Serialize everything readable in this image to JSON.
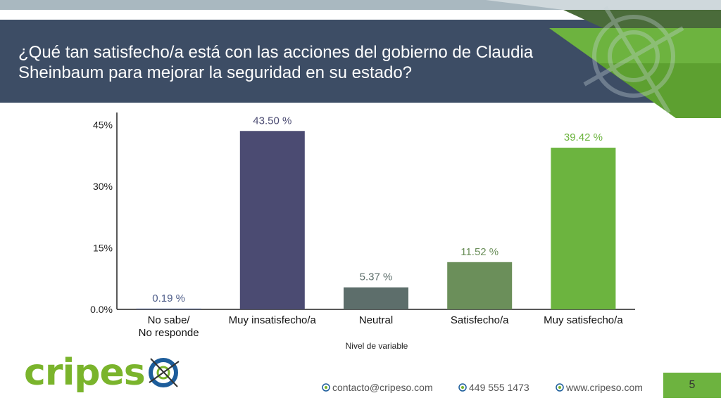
{
  "slide": {
    "title": "¿Qué tan satisfecho/a está con las acciones del gobierno de Claudia Sheinbaum para mejorar la seguridad en su estado?",
    "page_number": "5"
  },
  "chart_data": {
    "type": "bar",
    "categories": [
      "No sabe/\nNo responde",
      "Muy insatisfecho/a",
      "Neutral",
      "Satisfecho/a",
      "Muy satisfecho/a"
    ],
    "values": [
      0.19,
      43.5,
      5.37,
      11.52,
      39.42
    ],
    "value_labels": [
      "0.19 %",
      "43.50 %",
      "5.37 %",
      "11.52 %",
      "39.42 %"
    ],
    "bar_colors": [
      "#4f5e8a",
      "#4b4b72",
      "#5d6e6b",
      "#6b8f5a",
      "#6cb43f"
    ],
    "label_colors": [
      "#4f5e8a",
      "#4b4b72",
      "#5d6e6b",
      "#6b8f5a",
      "#6cb43f"
    ],
    "xlabel": "Nivel de variable",
    "ylabel": "",
    "ylim": [
      0,
      48
    ],
    "yticks": [
      0,
      15,
      30,
      45
    ],
    "ytick_labels": [
      "0.0%",
      "15%",
      "30%",
      "45%"
    ],
    "grid": false,
    "legend": "none"
  },
  "footer": {
    "email": "contacto@cripeso.com",
    "phone": "449 555 1473",
    "website": "www.cripeso.com",
    "logo_text_green": "cripes",
    "logo_text_blue": "o"
  },
  "colors": {
    "title_band": "#3d4d65",
    "accent_green": "#6db33f",
    "brand_blue": "#1d5d9b"
  }
}
